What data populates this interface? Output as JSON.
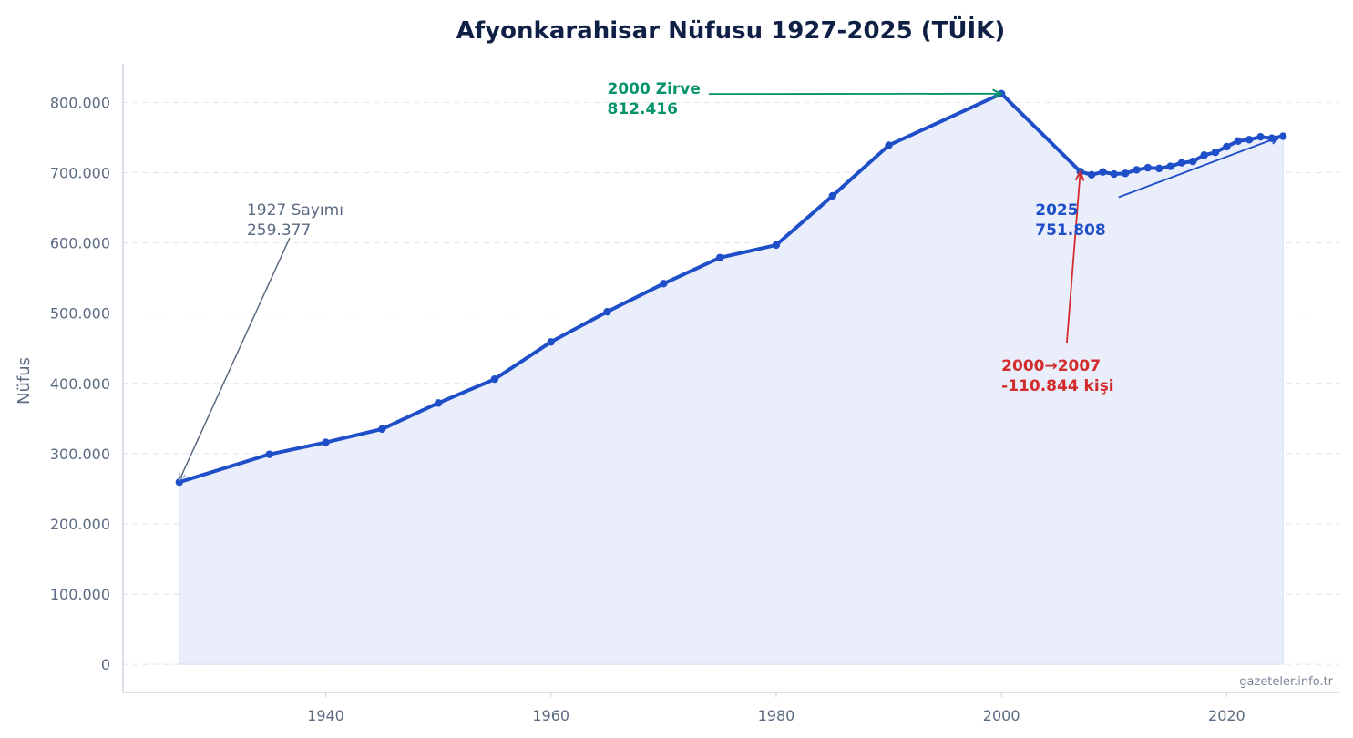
{
  "chart_data": {
    "type": "line",
    "title": "Afyonkarahisar Nüfusu 1927-2025 (TÜİK)",
    "xlabel": "",
    "ylabel": "Nüfus",
    "xlim": [
      1922,
      2030
    ],
    "ylim": [
      -40000,
      855000
    ],
    "x_ticks": [
      1940,
      1960,
      1980,
      2000,
      2020
    ],
    "x_tick_labels": [
      "1940",
      "1960",
      "1980",
      "2000",
      "2020"
    ],
    "y_ticks": [
      0,
      100000,
      200000,
      300000,
      400000,
      500000,
      600000,
      700000,
      800000
    ],
    "y_tick_labels": [
      "0",
      "100.000",
      "200.000",
      "300.000",
      "400.000",
      "500.000",
      "600.000",
      "700.000",
      "800.000"
    ],
    "grid": "y",
    "line_color": "#1f4fc8",
    "fill_color": "#eaeefb",
    "series": [
      {
        "x": [
          1927,
          1935,
          1940,
          1945,
          1950,
          1955,
          1960,
          1965,
          1970,
          1975,
          1980,
          1985,
          1990,
          2000,
          2007,
          2008,
          2009,
          2010,
          2011,
          2012,
          2013,
          2014,
          2015,
          2016,
          2017,
          2018,
          2019,
          2020,
          2021,
          2022,
          2023,
          2024,
          2025
        ],
        "y": [
          259377,
          299000,
          316000,
          335000,
          372000,
          406000,
          459000,
          502000,
          542000,
          579000,
          597000,
          667000,
          739000,
          812416,
          701572,
          697000,
          701000,
          698000,
          699000,
          704000,
          707000,
          706000,
          709000,
          714000,
          716000,
          725000,
          729000,
          737000,
          745000,
          747000,
          751000,
          749000,
          751808
        ]
      }
    ],
    "annotations": [
      {
        "id": "census",
        "lines": [
          "1927 Sayımı",
          "259.377"
        ],
        "color": "#5b6b82",
        "bold": false,
        "text_x": 1933,
        "text_y": 640000,
        "tail_x": 1936.8,
        "tail_y": 607000,
        "head_x": 1927,
        "head_y": 262000
      },
      {
        "id": "peak",
        "lines": [
          "2000 Zirve",
          "812.416"
        ],
        "color": "#05936b",
        "bold": true,
        "text_x": 1965,
        "text_y": 812000,
        "tail_x": 1974,
        "tail_y": 812000,
        "head_x": 2000,
        "head_y": 812416
      },
      {
        "id": "drop",
        "lines": [
          "2000→2007",
          "-110.844 kişi"
        ],
        "color": "#d22c2c",
        "bold": true,
        "text_x": 2000,
        "text_y": 418000,
        "tail_x": 2005.8,
        "tail_y": 457000,
        "head_x": 2007,
        "head_y": 701572
      },
      {
        "id": "latest",
        "lines": [
          "2025",
          "751.808"
        ],
        "color": "#1f4fc8",
        "bold": true,
        "text_x": 2003,
        "text_y": 640000,
        "tail_x": 2010.4,
        "tail_y": 665000,
        "head_x": 2024.7,
        "head_y": 751000
      }
    ]
  },
  "credit": "gazeteler.info.tr"
}
